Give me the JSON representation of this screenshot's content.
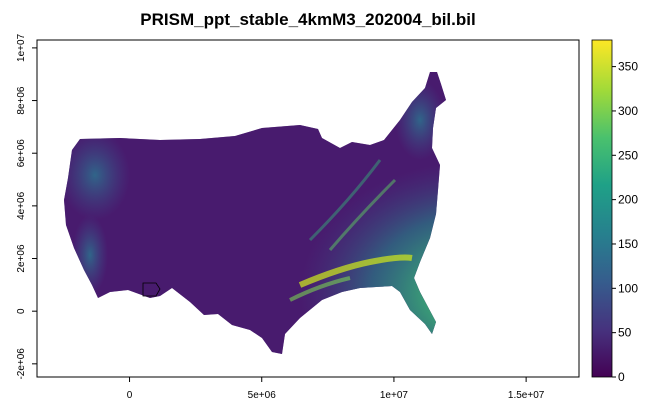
{
  "title": "PRISM_ppt_stable_4kmM3_202004_bil.bil",
  "map": {
    "x_ticks": [
      {
        "value": 0,
        "label": "0"
      },
      {
        "value": 5000000,
        "label": "5e+06"
      },
      {
        "value": 10000000,
        "label": "1e+07"
      },
      {
        "value": 15000000,
        "label": "1.5e+07"
      }
    ],
    "y_ticks": [
      {
        "value": -2000000,
        "label": "-2e+06"
      },
      {
        "value": 0,
        "label": "0"
      },
      {
        "value": 2000000,
        "label": "2e+06"
      },
      {
        "value": 4000000,
        "label": "4e+06"
      },
      {
        "value": 6000000,
        "label": "6e+06"
      },
      {
        "value": 8000000,
        "label": "8e+06"
      },
      {
        "value": 10000000,
        "label": "1e+07"
      }
    ],
    "xlim": [
      -3500000,
      17000000
    ],
    "ylim": [
      -2500000,
      10300000
    ],
    "colors": {
      "background": "#ffffff",
      "frame": "#000000",
      "low": "#440154",
      "mid": "#21918c",
      "high": "#fde725"
    }
  },
  "legend": {
    "range": [
      0,
      380
    ],
    "ticks": [
      {
        "value": 0,
        "label": "0"
      },
      {
        "value": 50,
        "label": "50"
      },
      {
        "value": 100,
        "label": "100"
      },
      {
        "value": 150,
        "label": "150"
      },
      {
        "value": 200,
        "label": "200"
      },
      {
        "value": 250,
        "label": "250"
      },
      {
        "value": 300,
        "label": "300"
      },
      {
        "value": 350,
        "label": "350"
      }
    ]
  }
}
